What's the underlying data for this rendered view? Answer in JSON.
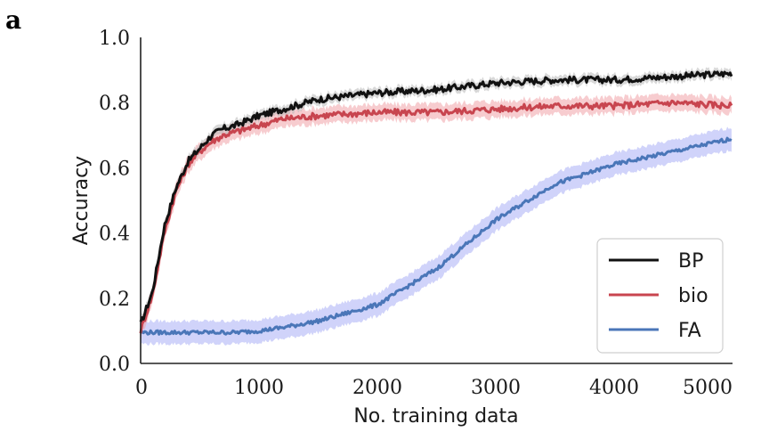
{
  "panel_label": "a",
  "colors": {
    "BP": "#111111",
    "bio": "#c8454f",
    "FA": "#4a76b8",
    "bio_band": "#f0a3a8",
    "FA_band": "#a9aef5",
    "BP_band": "#b8b8b8"
  },
  "chart_data": {
    "type": "line",
    "xlabel": "No. training data",
    "ylabel": "Accuracy",
    "xlim": [
      0,
      5000
    ],
    "ylim": [
      0.0,
      1.0
    ],
    "xticks": [
      "0",
      "1000",
      "2000",
      "3000",
      "4000",
      "5000"
    ],
    "yticks": [
      "0.0",
      "0.2",
      "0.4",
      "0.6",
      "0.8",
      "1.0"
    ],
    "grid": false,
    "legend_position": "bottom-right",
    "x": [
      0,
      100,
      200,
      300,
      400,
      500,
      600,
      700,
      800,
      1000,
      1200,
      1500,
      2000,
      2500,
      3000,
      3500,
      4000,
      4500,
      5000
    ],
    "series": [
      {
        "name": "BP",
        "values": [
          0.12,
          0.22,
          0.42,
          0.54,
          0.62,
          0.66,
          0.7,
          0.72,
          0.73,
          0.76,
          0.78,
          0.81,
          0.83,
          0.84,
          0.86,
          0.87,
          0.87,
          0.88,
          0.89
        ],
        "band": 0.015
      },
      {
        "name": "bio",
        "values": [
          0.1,
          0.21,
          0.4,
          0.53,
          0.61,
          0.65,
          0.68,
          0.7,
          0.71,
          0.73,
          0.75,
          0.76,
          0.77,
          0.77,
          0.78,
          0.79,
          0.79,
          0.8,
          0.79
        ],
        "band": 0.025
      },
      {
        "name": "FA",
        "values": [
          0.095,
          0.095,
          0.095,
          0.095,
          0.095,
          0.095,
          0.095,
          0.095,
          0.095,
          0.1,
          0.11,
          0.13,
          0.18,
          0.29,
          0.44,
          0.55,
          0.61,
          0.65,
          0.69
        ],
        "band": 0.035
      }
    ]
  }
}
